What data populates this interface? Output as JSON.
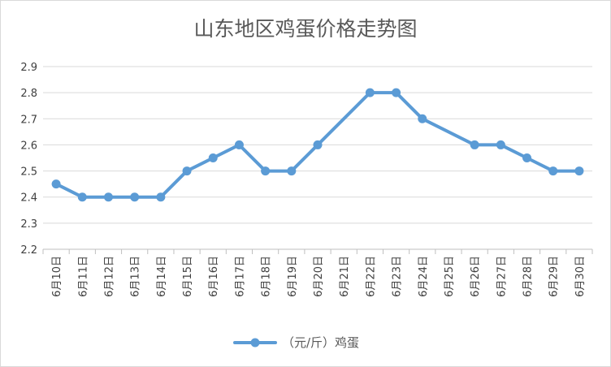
{
  "chart_data": {
    "type": "line",
    "title": "山东地区鸡蛋价格走势图",
    "xlabel": "",
    "ylabel": "",
    "categories": [
      "6月10日",
      "6月11日",
      "6月12日",
      "6月13日",
      "6月14日",
      "6月15日",
      "6月16日",
      "6月17日",
      "6月18日",
      "6月19日",
      "6月20日",
      "6月21日",
      "6月22日",
      "6月23日",
      "6月24日",
      "6月25日",
      "6月26日",
      "6月27日",
      "6月28日",
      "6月29日",
      "6月30日"
    ],
    "series": [
      {
        "name": "（元/斤）鸡蛋",
        "values": [
          2.45,
          2.4,
          2.4,
          2.4,
          2.4,
          2.5,
          2.55,
          2.6,
          2.5,
          2.5,
          2.6,
          null,
          2.8,
          2.8,
          2.7,
          null,
          2.6,
          2.6,
          2.55,
          2.5,
          2.5
        ]
      }
    ],
    "ylim": [
      2.2,
      2.9
    ],
    "yticks": [
      "2.2",
      "2.3",
      "2.4",
      "2.5",
      "2.6",
      "2.7",
      "2.8",
      "2.9"
    ],
    "grid": true,
    "legend": "bottom",
    "colors": {
      "series": "#5b9bd5",
      "grid": "#d9d9d9",
      "axis": "#bfbfbf"
    }
  }
}
